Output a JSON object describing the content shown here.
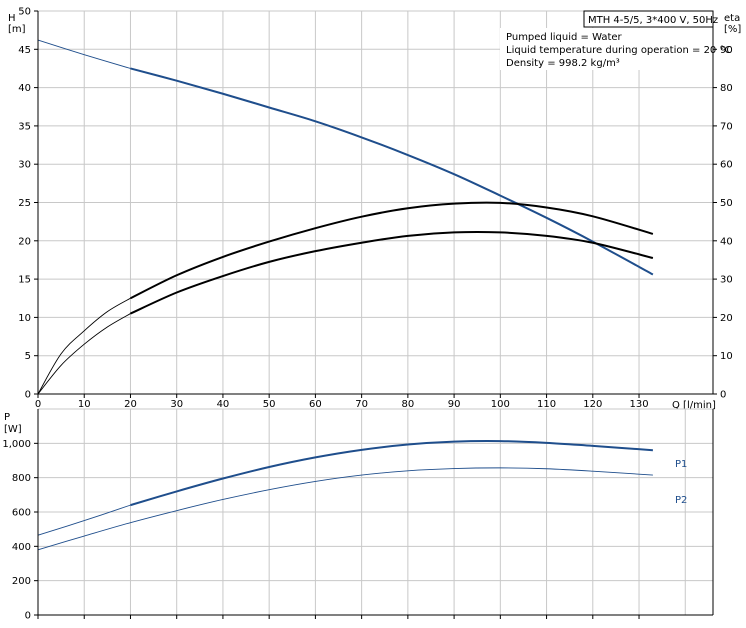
{
  "chart_data": [
    {
      "type": "line",
      "title": "",
      "ylabel": "H",
      "ylabel_unit": "[m]",
      "y2label": "eta",
      "y2label_unit": "[%]",
      "xlabel": "Q [l/min]",
      "xlim": [
        0,
        146
      ],
      "ylim": [
        0,
        50
      ],
      "y2lim": [
        0,
        100
      ],
      "x_ticks": [
        0,
        10,
        20,
        30,
        40,
        50,
        60,
        70,
        80,
        90,
        100,
        110,
        120,
        130
      ],
      "y_ticks": [
        0,
        5,
        10,
        15,
        20,
        25,
        30,
        35,
        40,
        45,
        50
      ],
      "y2_ticks": [
        0,
        10,
        20,
        30,
        40,
        50,
        60,
        70,
        80,
        90
      ],
      "grid": true,
      "info_box": {
        "title": "MTH 4-5/5, 3*400 V, 50Hz",
        "lines": [
          "Pumped liquid = Water",
          "Liquid temperature during operation = 20 °C",
          "Density = 998.2 kg/m³"
        ]
      },
      "series": [
        {
          "axis": "left",
          "color": "#1f4e8c",
          "thin_x": [
            0,
            20
          ],
          "thick_x": [
            20,
            133
          ],
          "x": [
            0,
            10,
            20,
            30,
            40,
            50,
            60,
            70,
            80,
            90,
            100,
            110,
            120,
            133
          ],
          "values": [
            46.2,
            44.3,
            42.5,
            40.9,
            39.2,
            37.4,
            35.6,
            33.5,
            31.2,
            28.7,
            25.9,
            23.0,
            19.9,
            15.6
          ]
        },
        {
          "axis": "right",
          "color": "#000000",
          "thin_x": [
            0,
            20
          ],
          "thick_x": [
            20,
            133
          ],
          "x": [
            0,
            5,
            10,
            15,
            20,
            30,
            40,
            50,
            60,
            70,
            80,
            90,
            100,
            110,
            120,
            133
          ],
          "values": [
            0,
            10.5,
            16.5,
            21.5,
            25.0,
            31.0,
            35.8,
            39.8,
            43.3,
            46.3,
            48.5,
            49.7,
            49.9,
            48.7,
            46.4,
            41.8
          ]
        },
        {
          "axis": "right",
          "color": "#000000",
          "thin_x": [
            0,
            20
          ],
          "thick_x": [
            20,
            133
          ],
          "x": [
            0,
            5,
            10,
            15,
            20,
            30,
            40,
            50,
            60,
            70,
            80,
            90,
            100,
            110,
            120,
            133
          ],
          "values": [
            0,
            7.5,
            13.0,
            17.5,
            21.0,
            26.5,
            30.8,
            34.5,
            37.3,
            39.5,
            41.3,
            42.2,
            42.2,
            41.3,
            39.5,
            35.5
          ]
        }
      ]
    },
    {
      "type": "line",
      "title": "",
      "ylabel": "P",
      "ylabel_unit": "[W]",
      "xlim": [
        0,
        146
      ],
      "ylim": [
        0,
        1200
      ],
      "y_ticks": [
        0,
        200,
        400,
        600,
        800,
        1000
      ],
      "y_tick_labels": [
        "0",
        "200",
        "400",
        "600",
        "800",
        "1,000"
      ],
      "grid": true,
      "series": [
        {
          "name": "P1",
          "color": "#1f4e8c",
          "thin_x": [
            0,
            20
          ],
          "thick_x": [
            20,
            133
          ],
          "x": [
            0,
            10,
            20,
            30,
            40,
            50,
            60,
            70,
            80,
            90,
            100,
            110,
            120,
            133
          ],
          "values": [
            465,
            550,
            640,
            720,
            795,
            862,
            918,
            962,
            993,
            1010,
            1013,
            1003,
            985,
            960
          ]
        },
        {
          "name": "P2",
          "color": "#1f4e8c",
          "thin_x": [
            0,
            133
          ],
          "thick_x": [],
          "x": [
            0,
            10,
            20,
            30,
            40,
            50,
            60,
            70,
            80,
            90,
            100,
            110,
            120,
            133
          ],
          "values": [
            380,
            460,
            538,
            608,
            673,
            730,
            778,
            815,
            840,
            853,
            857,
            852,
            838,
            815
          ]
        }
      ]
    }
  ]
}
